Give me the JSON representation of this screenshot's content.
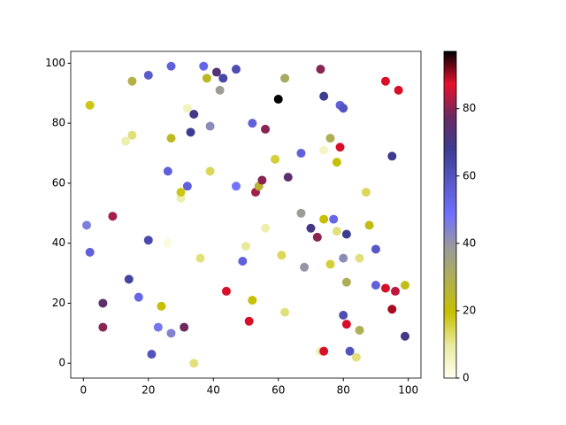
{
  "chart_data": {
    "type": "scatter",
    "x": [
      1,
      2,
      2,
      6,
      6,
      9,
      13,
      14,
      15,
      15,
      17,
      20,
      20,
      21,
      23,
      24,
      26,
      26,
      27,
      27,
      27,
      30,
      30,
      31,
      32,
      32,
      33,
      34,
      34,
      36,
      37,
      38,
      39,
      39,
      41,
      42,
      43,
      44,
      47,
      47,
      49,
      50,
      51,
      52,
      52,
      53,
      54,
      55,
      56,
      56,
      59,
      60,
      61,
      62,
      62,
      63,
      67,
      67,
      68,
      70,
      72,
      73,
      73,
      74,
      74,
      74,
      76,
      76,
      77,
      78,
      78,
      79,
      79,
      80,
      80,
      80,
      81,
      81,
      81,
      82,
      84,
      85,
      85,
      87,
      88,
      90,
      90,
      93,
      93,
      95,
      95,
      96,
      97,
      99,
      99,
      74
    ],
    "y": [
      46,
      37,
      86,
      20,
      12,
      49,
      74,
      28,
      94,
      76,
      22,
      96,
      41,
      3,
      12,
      19,
      64,
      40,
      99,
      75,
      10,
      55,
      57,
      12,
      59,
      85,
      77,
      83,
      0,
      35,
      99,
      95,
      79,
      64,
      97,
      91,
      95,
      24,
      98,
      59,
      34,
      39,
      14,
      80,
      21,
      57,
      59,
      61,
      78,
      45,
      68,
      88,
      36,
      95,
      17,
      62,
      70,
      50,
      32,
      45,
      42,
      98,
      4,
      89,
      71,
      48,
      75,
      33,
      48,
      44,
      67,
      86,
      72,
      85,
      35,
      16,
      27,
      43,
      13,
      4,
      2,
      35,
      11,
      57,
      46,
      38,
      26,
      94,
      25,
      69,
      18,
      24,
      91,
      26,
      9,
      4
    ],
    "colors": [
      45,
      55,
      18,
      75,
      80,
      82,
      8,
      65,
      28,
      12,
      52,
      57,
      63,
      60,
      47,
      20,
      55,
      2,
      55,
      24,
      44,
      8,
      18,
      78,
      55,
      6,
      68,
      70,
      12,
      12,
      53,
      24,
      42,
      14,
      73,
      38,
      64,
      88,
      62,
      48,
      55,
      10,
      88,
      55,
      20,
      82,
      26,
      80,
      80,
      8,
      16,
      97,
      14,
      32,
      12,
      75,
      55,
      38,
      40,
      70,
      80,
      80,
      8,
      68,
      5,
      20,
      30,
      16,
      52,
      12,
      20,
      55,
      88,
      60,
      42,
      62,
      30,
      68,
      88,
      60,
      12,
      12,
      30,
      14,
      22,
      58,
      55,
      88,
      88,
      68,
      90,
      84,
      88,
      22,
      70,
      88
    ],
    "colormap": [
      "#fffff0",
      "#eaeaa0",
      "#c8c000",
      "#b0b050",
      "#9a9a9a",
      "#7070ff",
      "#5858c8",
      "#3c3c90",
      "#6a2a60",
      "#e8102c",
      "#000000"
    ],
    "clim": [
      0,
      97
    ],
    "cticks": [
      0,
      20,
      40,
      60,
      80
    ],
    "xlim": [
      -3.9,
      103.9
    ],
    "ylim": [
      -4.95,
      103.95
    ],
    "xticks": [
      0,
      20,
      40,
      60,
      80,
      100
    ],
    "yticks": [
      0,
      20,
      40,
      60,
      80,
      100
    ]
  }
}
